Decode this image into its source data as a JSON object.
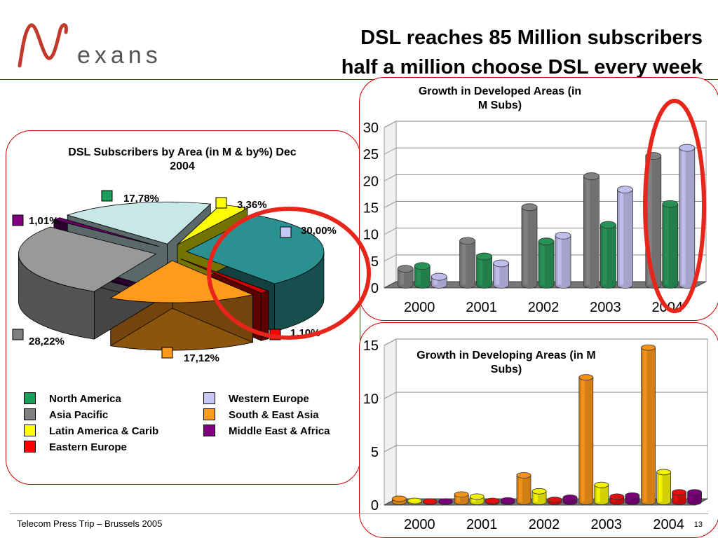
{
  "brand": {
    "name": "exans",
    "color": "#c0392b"
  },
  "slide": {
    "title_line1": "DSL reaches 85 Million subscribers",
    "title_line2": "half a million choose DSL every week",
    "footer": "Telecom Press Trip – Brussels 2005",
    "page_number": "13"
  },
  "colors": {
    "north_america": "#1a9e5a",
    "asia_pacific": "#808080",
    "latin_america": "#ffff00",
    "eastern_europe": "#ff0000",
    "western_europe": "#c8c8f8",
    "south_east_asia": "#ff9a1a",
    "middle_east_africa": "#800080",
    "highlight": "#e8251a"
  },
  "legend": {
    "items": [
      {
        "label": "North America",
        "color": "#1a9e5a"
      },
      {
        "label": "Asia Pacific",
        "color": "#808080"
      },
      {
        "label": "Latin America & Carib",
        "color": "#ffff00"
      },
      {
        "label": "Eastern Europe",
        "color": "#ff0000"
      },
      {
        "label": "Western Europe",
        "color": "#c8c8f8"
      },
      {
        "label": "South & East Asia",
        "color": "#ff9a1a"
      },
      {
        "label": "Middle East & Africa",
        "color": "#800080"
      }
    ]
  },
  "chart_data": [
    {
      "type": "pie",
      "title_line1": "DSL Subscribers by Area (in M & by%) Dec",
      "title_line2": "2004",
      "slices": [
        {
          "name": "Western Europe",
          "value": 30.0,
          "label": "30,00%",
          "color": "#2a9090",
          "icon_color": "#c8c8f8"
        },
        {
          "name": "Eastern Europe",
          "value": 1.1,
          "label": "1,10%",
          "color": "#cc0000",
          "icon_color": "#ff0000"
        },
        {
          "name": "South & East Asia",
          "value": 17.12,
          "label": "17,12%",
          "color": "#ff9a1a",
          "icon_color": "#ff9a1a"
        },
        {
          "name": "Asia Pacific",
          "value": 28.22,
          "label": "28,22%",
          "color": "#999999",
          "icon_color": "#808080"
        },
        {
          "name": "Middle East & Africa",
          "value": 1.01,
          "label": "1,01%",
          "color": "#660066",
          "icon_color": "#800080"
        },
        {
          "name": "North America",
          "value": 17.78,
          "label": "17,78%",
          "color": "#c8e8e8",
          "icon_color": "#1a9e5a"
        },
        {
          "name": "Latin America & Carib",
          "value": 3.36,
          "label": "3,36%",
          "color": "#ffff00",
          "icon_color": "#ffff00"
        }
      ]
    },
    {
      "type": "bar",
      "title_line1": "Growth in Developed Areas  (in",
      "title_line2": "M Subs)",
      "categories": [
        "2000",
        "2001",
        "2002",
        "2003",
        "2004"
      ],
      "series": [
        {
          "values": [
            3,
            8.2,
            14.5,
            20.3,
            24.1
          ],
          "color": "#888888"
        },
        {
          "values": [
            3.5,
            5.3,
            8.1,
            11.2,
            15.1
          ],
          "color": "#2a9a5a"
        },
        {
          "values": [
            1.5,
            4,
            9.2,
            17.8,
            25.6
          ],
          "color": "#c8c8f8"
        }
      ],
      "ylim": [
        0,
        30
      ],
      "yticks": [
        "0",
        "5",
        "10",
        "15",
        "20",
        "25",
        "30"
      ]
    },
    {
      "type": "bar",
      "title_line1": "Growth in Developing Areas      (in M",
      "title_line2": "Subs)",
      "categories": [
        "2000",
        "2001",
        "2002",
        "2003",
        "2004"
      ],
      "series": [
        {
          "values": [
            0.3,
            0.7,
            2.5,
            11.7,
            14.5
          ],
          "color": "#ff9a1a"
        },
        {
          "values": [
            0.1,
            0.5,
            1.0,
            1.6,
            2.8
          ],
          "color": "#ffff00"
        },
        {
          "values": [
            0.05,
            0.1,
            0.2,
            0.5,
            0.9
          ],
          "color": "#ee1111"
        },
        {
          "values": [
            0.05,
            0.15,
            0.4,
            0.6,
            0.9
          ],
          "color": "#800080"
        }
      ],
      "ylim": [
        0,
        15
      ],
      "yticks": [
        "0",
        "5",
        "10",
        "15"
      ]
    }
  ]
}
